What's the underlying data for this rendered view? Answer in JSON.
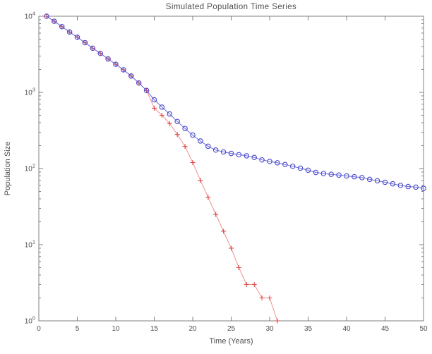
{
  "chart_data": {
    "type": "line",
    "title": "Simulated Population Time Series",
    "xlabel": "Time (Years)",
    "ylabel": "Population Size",
    "x_scale": "linear",
    "y_scale": "log",
    "xlim": [
      0,
      50
    ],
    "ylim": [
      1,
      10000
    ],
    "x_ticks": [
      0,
      5,
      10,
      15,
      20,
      25,
      30,
      35,
      40,
      45,
      50
    ],
    "y_tick_exponents": [
      0,
      1,
      2,
      3,
      4
    ],
    "grid": false,
    "legend": "none",
    "colors": {
      "axis": "#808080",
      "tick_text": "#4f4f4f"
    },
    "series": [
      {
        "name": "red-plus",
        "marker": "plus",
        "marker_color": "#e04848",
        "line_color": "#f29090",
        "x": [
          1,
          2,
          3,
          4,
          5,
          6,
          7,
          8,
          9,
          10,
          11,
          12,
          13,
          14,
          15,
          16,
          17,
          18,
          19,
          20,
          21,
          22,
          23,
          24,
          25,
          26,
          27,
          28,
          29,
          30,
          31
        ],
        "values": [
          10000,
          8600,
          7300,
          6200,
          5300,
          4500,
          3800,
          3250,
          2750,
          2340,
          1980,
          1640,
          1330,
          1060,
          620,
          500,
          390,
          280,
          195,
          120,
          70,
          42,
          25,
          15,
          9,
          5,
          3,
          3,
          2,
          2,
          1
        ]
      },
      {
        "name": "blue-circles",
        "marker": "circle",
        "marker_color": "#4848cc",
        "line_color": "#6a6ad8",
        "x": [
          1,
          2,
          3,
          4,
          5,
          6,
          7,
          8,
          9,
          10,
          11,
          12,
          13,
          14,
          15,
          16,
          17,
          18,
          19,
          20,
          21,
          22,
          23,
          24,
          25,
          26,
          27,
          28,
          29,
          30,
          31,
          32,
          33,
          34,
          35,
          36,
          37,
          38,
          39,
          40,
          41,
          42,
          43,
          44,
          45,
          46,
          47,
          48,
          49,
          50
        ],
        "values": [
          10000,
          8600,
          7300,
          6200,
          5300,
          4500,
          3800,
          3250,
          2750,
          2340,
          1980,
          1640,
          1330,
          1060,
          800,
          640,
          520,
          415,
          335,
          275,
          230,
          196,
          175,
          165,
          158,
          152,
          147,
          140,
          130,
          124,
          119,
          113,
          107,
          101,
          95,
          89,
          86,
          84,
          82,
          80,
          78,
          76,
          72,
          69,
          66,
          63,
          60,
          58,
          57,
          55
        ]
      }
    ]
  }
}
